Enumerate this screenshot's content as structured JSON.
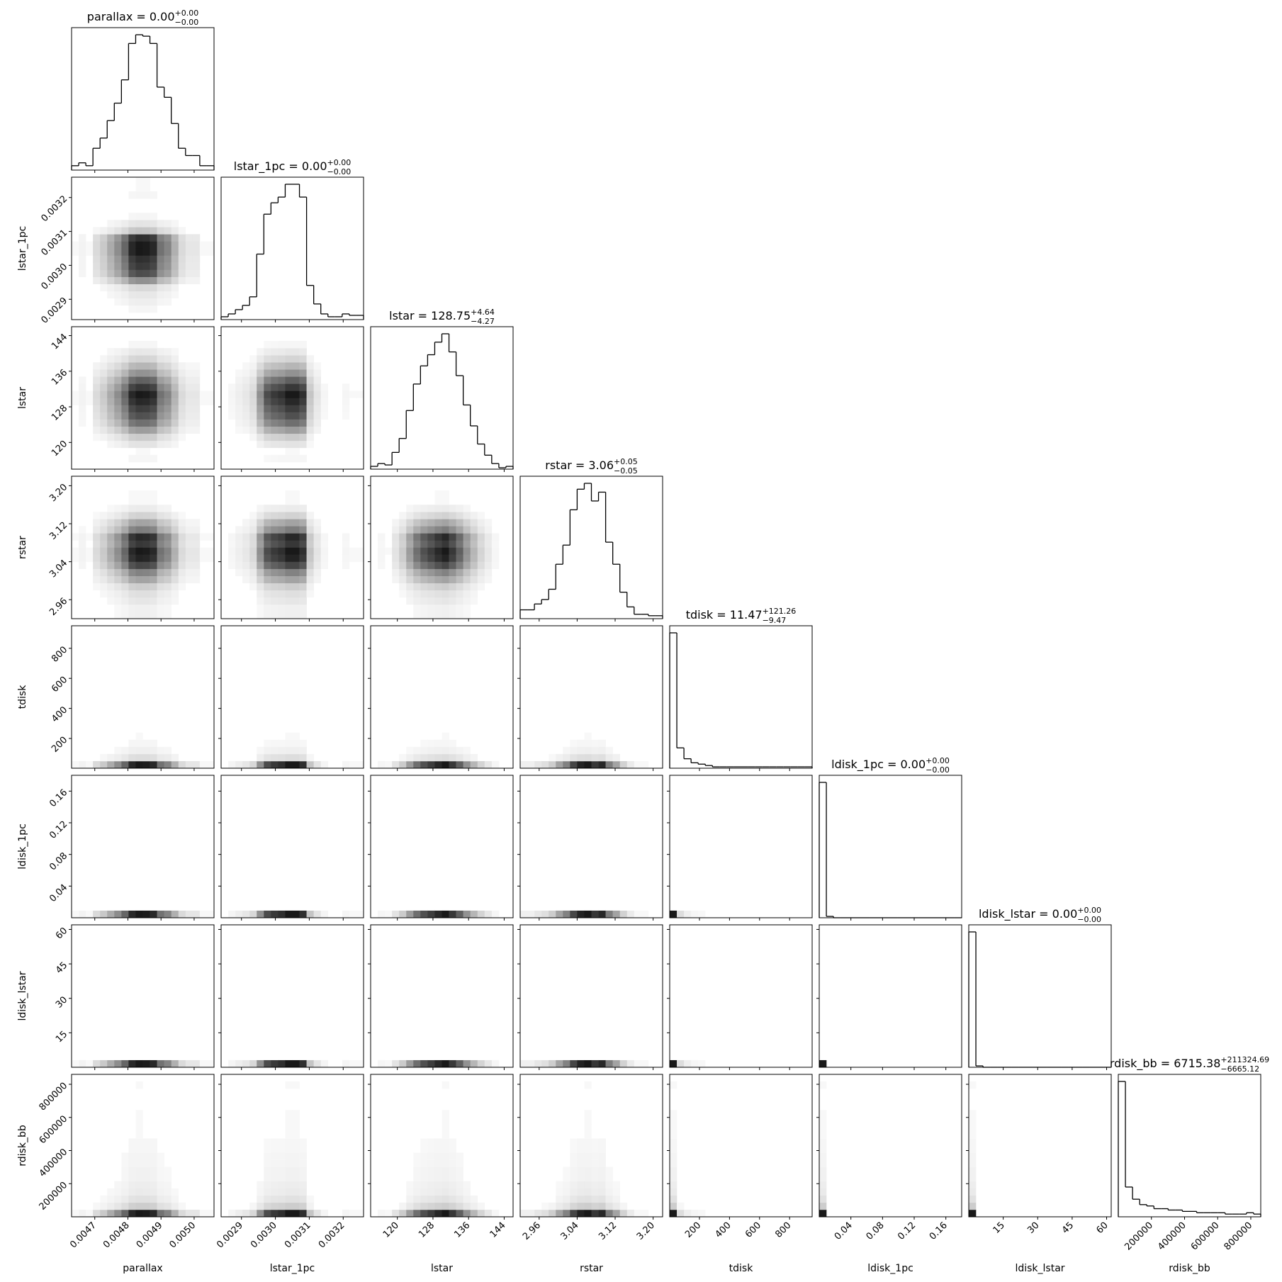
{
  "chart_data": {
    "type": "corner",
    "parameters": [
      {
        "name": "parallax",
        "title": "parallax = 0.00",
        "upper": "+0.00",
        "lower": "−0.00",
        "lim": [
          0.00463,
          0.00506
        ],
        "ticks": [
          0.0047,
          0.0048,
          0.0049,
          {
            "value": 0.005,
            "label": "0.0050"
          }
        ],
        "counts": [
          3,
          5,
          3,
          15,
          22,
          34,
          46,
          62,
          87,
          93,
          92,
          87,
          57,
          50,
          32,
          15,
          10,
          10,
          3,
          3
        ]
      },
      {
        "name": "lstar_1pc",
        "title": "lstar_1pc = 0.00",
        "upper": "+0.00",
        "lower": "−0.00",
        "lim": [
          0.00284,
          0.00326
        ],
        "ticks": [
          0.0029,
          {
            "value": 0.003,
            "label": "0.0030"
          },
          0.0031,
          0.0032
        ],
        "counts": [
          2,
          4,
          7,
          10,
          16,
          46,
          74,
          82,
          86,
          95,
          95,
          86,
          24,
          11,
          4,
          2,
          2,
          4,
          3,
          3
        ]
      },
      {
        "name": "lstar",
        "title": "lstar = 128.75",
        "upper": "+4.64",
        "lower": "−4.27",
        "lim": [
          114,
          146
        ],
        "ticks": [
          120,
          128,
          136,
          144
        ],
        "counts": [
          2,
          4,
          3,
          12,
          22,
          42,
          61,
          74,
          82,
          91,
          97,
          84,
          67,
          46,
          31,
          18,
          10,
          4,
          1,
          2
        ]
      },
      {
        "name": "rstar",
        "title": "rstar = 3.06",
        "upper": "+0.05",
        "lower": "−0.05",
        "lim": [
          2.92,
          3.22
        ],
        "ticks": [
          2.96,
          3.04,
          3.12,
          {
            "value": 3.2,
            "label": "3.20"
          }
        ],
        "counts": [
          6,
          6,
          10,
          13,
          20,
          37,
          50,
          74,
          88,
          92,
          80,
          86,
          52,
          37,
          18,
          8,
          3,
          3,
          2,
          2
        ]
      },
      {
        "name": "tdisk",
        "title": "tdisk = 11.47",
        "upper": "+121.26",
        "lower": "−9.47",
        "lim": [
          2,
          950
        ],
        "ticks": [
          200,
          400,
          600,
          800
        ],
        "counts": [
          100,
          15,
          7,
          4,
          3,
          2,
          1,
          1,
          1,
          1,
          1,
          1,
          1,
          1,
          1,
          1,
          1,
          1,
          1,
          1
        ]
      },
      {
        "name": "ldisk_1pc",
        "title": "ldisk_1pc = 0.00",
        "upper": "+0.00",
        "lower": "−0.00",
        "lim": [
          0,
          0.18
        ],
        "ticks": [
          0.04,
          0.08,
          0.12,
          0.16
        ],
        "counts": [
          100,
          1,
          0,
          0,
          0,
          0,
          0,
          0,
          0,
          0,
          0,
          0,
          0,
          0,
          0,
          0,
          0,
          0,
          0,
          0
        ]
      },
      {
        "name": "ldisk_lstar",
        "title": "ldisk_lstar = 0.00",
        "upper": "+0.00",
        "lower": "−0.00",
        "lim": [
          0,
          62
        ],
        "ticks": [
          15,
          30,
          45,
          60
        ],
        "counts": [
          100,
          1,
          0,
          0,
          0,
          0,
          0,
          0,
          0,
          0,
          0,
          0,
          0,
          0,
          0,
          0,
          0,
          0,
          0,
          0
        ]
      },
      {
        "name": "rdisk_bb",
        "title": "rdisk_bb = 6715.38",
        "upper": "+211324.69",
        "lower": "−6665.12",
        "lim": [
          0,
          860000
        ],
        "ticks": [
          200000,
          400000,
          600000,
          800000
        ],
        "counts": [
          100,
          22,
          13,
          9,
          8,
          6,
          6,
          5,
          5,
          4,
          4,
          3,
          3,
          3,
          3,
          2,
          2,
          2,
          3,
          2
        ]
      }
    ]
  }
}
